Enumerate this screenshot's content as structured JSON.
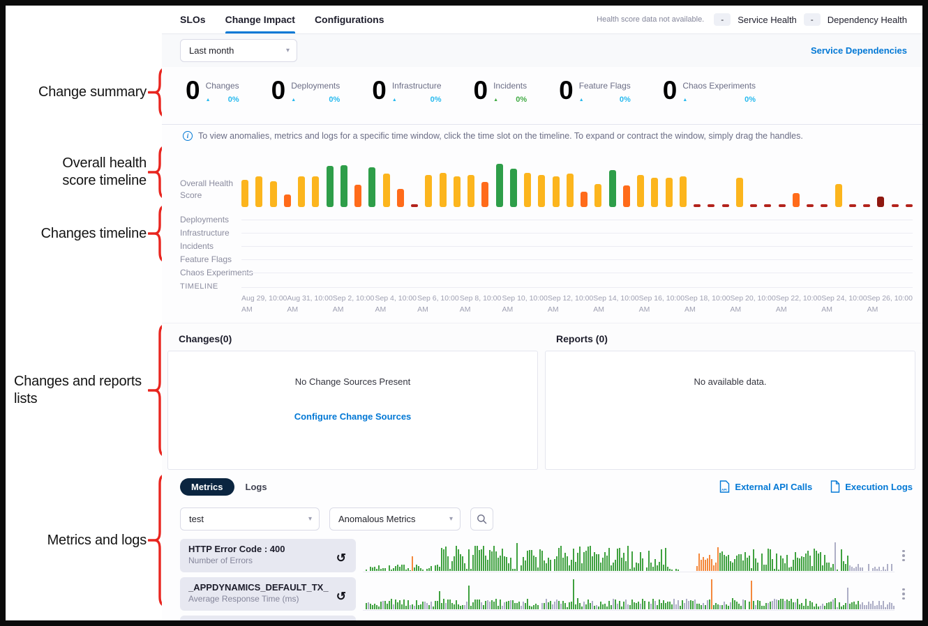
{
  "palette": {
    "accent_blue": "#0278d5",
    "annotation_red": "#e8251f",
    "trend_cyan": "#27b9ee",
    "trend_green": "#42ab45",
    "health_bars": {
      "y": "#fcb51d",
      "g": "#2e9e49",
      "o": "#ff6b1a",
      "r": "#b3231c",
      "R": "#8f1810"
    },
    "spark": {
      "green": "#3fa13f",
      "orange": "#f4883c",
      "gray": "#adaec6"
    }
  },
  "annotations": {
    "items": [
      {
        "label": "Change summary"
      },
      {
        "label": "Overall health\nscore timeline"
      },
      {
        "label": "Changes timeline"
      },
      {
        "label": "Changes and reports\nlists"
      },
      {
        "label": "Metrics and logs"
      }
    ]
  },
  "header": {
    "tabs": [
      {
        "label": "SLOs",
        "active": false
      },
      {
        "label": "Change Impact",
        "active": true
      },
      {
        "label": "Configurations",
        "active": false
      }
    ],
    "legend_note": "Health score data not available.",
    "legend": [
      {
        "badge": "-",
        "label": "Service Health"
      },
      {
        "badge": "-",
        "label": "Dependency Health"
      }
    ]
  },
  "toolbar": {
    "time_range": "Last month",
    "service_dependencies_label": "Service Dependencies"
  },
  "summary": {
    "stats": [
      {
        "value": "0",
        "label": "Changes",
        "percent": "0%",
        "trend": "cyan"
      },
      {
        "value": "0",
        "label": "Deployments",
        "percent": "0%",
        "trend": "cyan"
      },
      {
        "value": "0",
        "label": "Infrastructure",
        "percent": "0%",
        "trend": "cyan"
      },
      {
        "value": "0",
        "label": "Incidents",
        "percent": "0%",
        "trend": "green"
      },
      {
        "value": "0",
        "label": "Feature Flags",
        "percent": "0%",
        "trend": "cyan"
      },
      {
        "value": "0",
        "label": "Chaos Experiments",
        "percent": "0%",
        "trend": "cyan"
      }
    ]
  },
  "info_banner": "To view anomalies, metrics and logs for a specific time window, click the time slot on the timeline. To expand or contract the window, simply drag the handles.",
  "timeline": {
    "health_row_label": "Overall Health Score",
    "rows": [
      "Deployments",
      "Infrastructure",
      "Incidents",
      "Feature Flags",
      "Chaos Experiments"
    ],
    "timeline_label": "TIMELINE",
    "ticks": [
      "Aug 29, 10:00\nAM",
      "Aug 31, 10:00\nAM",
      "Sep 2, 10:00\nAM",
      "Sep 4, 10:00\nAM",
      "Sep 6, 10:00\nAM",
      "Sep 8, 10:00\nAM",
      "Sep 10, 10:00\nAM",
      "Sep 12, 10:00\nAM",
      "Sep 14, 10:00\nAM",
      "Sep 16, 10:00\nAM",
      "Sep 18, 10:00\nAM",
      "Sep 20, 10:00\nAM",
      "Sep 22, 10:00\nAM",
      "Sep 24, 10:00\nAM",
      "Sep 26, 10:00\nAM"
    ]
  },
  "chart_data": [
    {
      "type": "bar",
      "name": "overall-health-score",
      "title": "Overall Health Score",
      "ylim": [
        0,
        100
      ],
      "legend": "color encodes health: green=good, yellow=moderate, orange=poor, red=no data/critical",
      "bars": [
        [
          "y",
          59
        ],
        [
          "y",
          66
        ],
        [
          "y",
          56
        ],
        [
          "o",
          28
        ],
        [
          "y",
          66
        ],
        [
          "y",
          67
        ],
        [
          "g",
          89
        ],
        [
          "g",
          91
        ],
        [
          "o",
          48
        ],
        [
          "g",
          86
        ],
        [
          "y",
          73
        ],
        [
          "o",
          39
        ],
        [
          "r",
          6
        ],
        [
          "y",
          69
        ],
        [
          "y",
          75
        ],
        [
          "y",
          66
        ],
        [
          "y",
          69
        ],
        [
          "o",
          55
        ],
        [
          "g",
          94
        ],
        [
          "g",
          84
        ],
        [
          "y",
          75
        ],
        [
          "y",
          69
        ],
        [
          "y",
          66
        ],
        [
          "y",
          72
        ],
        [
          "o",
          34
        ],
        [
          "y",
          50
        ],
        [
          "g",
          81
        ],
        [
          "o",
          47
        ],
        [
          "y",
          70
        ],
        [
          "y",
          63
        ],
        [
          "y",
          63
        ],
        [
          "y",
          67
        ],
        [
          "r",
          6
        ],
        [
          "r",
          6
        ],
        [
          "r",
          6
        ],
        [
          "y",
          63
        ],
        [
          "r",
          6
        ],
        [
          "r",
          6
        ],
        [
          "r",
          6
        ],
        [
          "o",
          31
        ],
        [
          "r",
          6
        ],
        [
          "r",
          6
        ],
        [
          "y",
          50
        ],
        [
          "r",
          6
        ],
        [
          "r",
          6
        ],
        [
          "R",
          22
        ],
        [
          "r",
          6
        ],
        [
          "r",
          6
        ]
      ]
    },
    {
      "type": "bar",
      "name": "http-error-code-400-sparkline",
      "title": "HTTP Error Code : 400 — Number of Errors",
      "bars_count": 256,
      "segments": [
        {
          "from": 0.0,
          "to": 0.14,
          "color": "green",
          "min": 3,
          "max": 22,
          "density": 0.85
        },
        {
          "from": 0.14,
          "to": 0.56,
          "color": "green",
          "min": 6,
          "max": 85,
          "density": 0.97
        },
        {
          "from": 0.56,
          "to": 0.585,
          "color": "green",
          "min": 3,
          "max": 15,
          "density": 0.8
        },
        {
          "from": 0.585,
          "to": 0.615,
          "color": "green",
          "min": 0,
          "max": 0,
          "density": 0
        },
        {
          "from": 0.615,
          "to": 0.66,
          "color": "orange",
          "min": 15,
          "max": 60,
          "density": 0.95
        },
        {
          "from": 0.66,
          "to": 0.9,
          "color": "green",
          "min": 5,
          "max": 75,
          "density": 0.95
        },
        {
          "from": 0.9,
          "to": 1.01,
          "color": "gray",
          "min": 3,
          "max": 30,
          "density": 0.85
        }
      ],
      "spikes": [
        {
          "x": 0.085,
          "h": 48,
          "color": "orange"
        },
        {
          "x": 0.28,
          "h": 92,
          "color": "green"
        },
        {
          "x": 0.655,
          "h": 80,
          "color": "orange"
        },
        {
          "x": 0.875,
          "h": 95,
          "color": "gray"
        }
      ]
    },
    {
      "type": "bar",
      "name": "appdynamics-default-tx-sparkline",
      "title": "_APPDYNAMICS_DEFAULT_TX_ — Average Response Time (ms)",
      "bars_count": 256,
      "segments": [
        {
          "from": 0.0,
          "to": 0.92,
          "color": "mix",
          "min": 8,
          "max": 38,
          "density": 0.98
        },
        {
          "from": 0.92,
          "to": 1.01,
          "color": "gray",
          "min": 6,
          "max": 30,
          "density": 0.95
        }
      ],
      "spikes": [
        {
          "x": 0.135,
          "h": 60,
          "color": "green"
        },
        {
          "x": 0.19,
          "h": 78,
          "color": "green"
        },
        {
          "x": 0.385,
          "h": 100,
          "color": "green"
        },
        {
          "x": 0.645,
          "h": 100,
          "color": "orange"
        },
        {
          "x": 0.72,
          "h": 95,
          "color": "orange"
        },
        {
          "x": 0.9,
          "h": 72,
          "color": "gray"
        }
      ]
    }
  ],
  "changes_panel": {
    "title": "Changes(0)",
    "empty_text": "No Change Sources Present",
    "link_label": "Configure Change Sources"
  },
  "reports_panel": {
    "title": "Reports (0)",
    "empty_text": "No available data."
  },
  "metrics_section": {
    "tabs": [
      {
        "label": "Metrics",
        "active": true
      },
      {
        "label": "Logs",
        "active": false
      }
    ],
    "links": [
      {
        "label": "External API Calls"
      },
      {
        "label": "Execution Logs"
      }
    ],
    "filters": {
      "service": "test",
      "metric_type": "Anomalous Metrics"
    },
    "rows": [
      {
        "title": "HTTP Error Code : 400",
        "subtitle": "Number of Errors"
      },
      {
        "title": "_APPDYNAMICS_DEFAULT_TX_",
        "subtitle": "Average Response Time (ms)"
      }
    ]
  }
}
